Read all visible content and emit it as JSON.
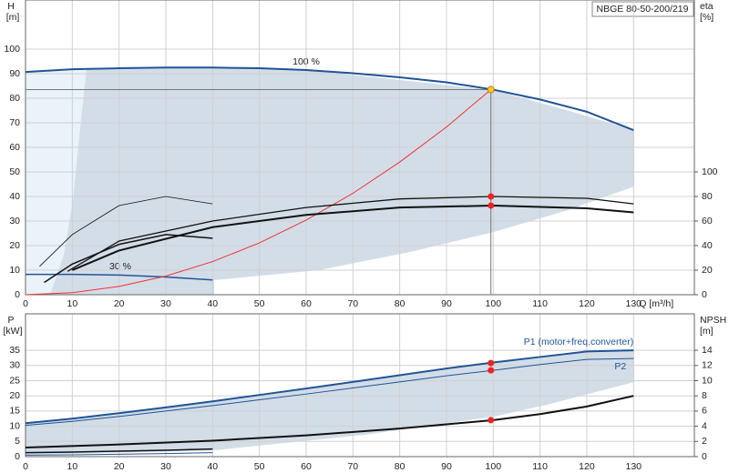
{
  "title": "NBGE 80-50-200/219",
  "chart_data": [
    {
      "type": "line",
      "xlabel": "Q [m³/h]",
      "ylabel": "H",
      "yunit": "[m]",
      "y2label": "eta",
      "y2unit": "[%]",
      "xlim": [
        0,
        143
      ],
      "xticks": [
        0,
        10,
        20,
        30,
        40,
        50,
        60,
        70,
        80,
        90,
        100,
        110,
        120,
        130
      ],
      "ylim": [
        0,
        120
      ],
      "yticks": [
        0,
        10,
        20,
        30,
        40,
        50,
        60,
        70,
        80,
        90,
        100
      ],
      "y2lim": [
        0,
        240
      ],
      "y2ticks": [
        0,
        20,
        40,
        60,
        80,
        100
      ],
      "grid": true,
      "annotations": [
        "100 %",
        "30 %"
      ],
      "series": [
        {
          "color": "#1f5496",
          "width": 2,
          "x": [
            0,
            10,
            20,
            30,
            40,
            50,
            60,
            70,
            80,
            90,
            100,
            110,
            120,
            130
          ],
          "values": [
            90.7,
            91.8,
            92.2,
            92.5,
            92.5,
            92.2,
            91.5,
            90.2,
            88.5,
            86.5,
            83.5,
            79.5,
            74.5,
            67
          ]
        },
        {
          "color": "#1f5496",
          "width": 1.5,
          "x": [
            0,
            10,
            20,
            30,
            40
          ],
          "values": [
            8.3,
            8.3,
            8,
            7.2,
            6
          ]
        },
        {
          "color": "#ee3333",
          "width": 1,
          "x": [
            0,
            10,
            20,
            30,
            40,
            50,
            60,
            70,
            80,
            90,
            99.5
          ],
          "values": [
            0,
            0.84,
            3.37,
            7.59,
            13.5,
            21.1,
            30.4,
            41.3,
            54,
            68.3,
            83.5
          ]
        },
        {
          "color": "#111111",
          "width": 1.3,
          "axis": "y2",
          "x": [
            9,
            20,
            40,
            60,
            80,
            100,
            120,
            130
          ],
          "values": [
            19,
            43.7,
            60,
            71,
            78,
            80,
            78.5,
            74
          ]
        },
        {
          "color": "#111111",
          "width": 2,
          "axis": "y2",
          "x": [
            10,
            20,
            40,
            60,
            80,
            100,
            120,
            130
          ],
          "values": [
            20,
            36,
            55,
            65,
            71,
            72.6,
            70.4,
            67
          ]
        },
        {
          "color": "#111111",
          "width": 0.8,
          "axis": "y2",
          "x": [
            3,
            10,
            20,
            30,
            40
          ],
          "values": [
            23,
            49,
            72.6,
            80,
            74
          ]
        },
        {
          "color": "#111111",
          "width": 1.5,
          "axis": "y2",
          "x": [
            4,
            10,
            20,
            30,
            40
          ],
          "values": [
            10,
            25,
            41,
            49,
            46
          ]
        }
      ],
      "points": [
        {
          "x": 99.5,
          "y": 83.5,
          "color": "#ffcc22",
          "guides": true
        },
        {
          "x": 99.5,
          "y": 80,
          "color": "#ee2222",
          "axis": "y2"
        },
        {
          "x": 99.5,
          "y": 72.6,
          "color": "#ee2222",
          "axis": "y2"
        }
      ]
    },
    {
      "type": "line",
      "ylabel": "P",
      "yunit": "[kW]",
      "y2label": "NPSH",
      "y2unit": "[m]",
      "xlim": [
        0,
        143
      ],
      "xticks": [
        0,
        10,
        20,
        30,
        40,
        50,
        60,
        70,
        80,
        90,
        100,
        110,
        120,
        130
      ],
      "ylim": [
        0,
        47
      ],
      "yticks": [
        0,
        5,
        10,
        15,
        20,
        25,
        30,
        35
      ],
      "y2lim": [
        0,
        18.8
      ],
      "y2ticks": [
        0,
        2,
        4,
        6,
        8,
        10,
        12,
        14
      ],
      "grid": true,
      "series": [
        {
          "name": "P1 (motor+freq.converter)",
          "color": "#1f5496",
          "width": 2,
          "x": [
            0,
            10,
            20,
            30,
            40,
            50,
            60,
            70,
            80,
            90,
            100,
            110,
            120,
            130
          ],
          "values": [
            11,
            12.5,
            14.3,
            16.2,
            18.2,
            20.3,
            22.4,
            24.6,
            26.8,
            29,
            31,
            32.8,
            34.6,
            35
          ]
        },
        {
          "name": "P2",
          "color": "#1f5496",
          "width": 1,
          "x": [
            0,
            10,
            20,
            30,
            40,
            50,
            60,
            70,
            80,
            90,
            100,
            110,
            120,
            130
          ],
          "values": [
            10.3,
            11.6,
            13.2,
            15,
            16.8,
            18.7,
            20.6,
            22.6,
            24.6,
            26.6,
            28.4,
            30.3,
            32,
            32.3
          ]
        },
        {
          "color": "#111111",
          "width": 2,
          "axis": "y2",
          "x": [
            0,
            20,
            40,
            60,
            80,
            100,
            110,
            120,
            130
          ],
          "values": [
            1.2,
            1.6,
            2.1,
            2.8,
            3.7,
            4.8,
            5.6,
            6.6,
            8
          ]
        },
        {
          "color": "#111111",
          "width": 1.5,
          "x": [
            0,
            10,
            20,
            30,
            40
          ],
          "values": [
            1.3,
            1.5,
            1.8,
            2.1,
            2.5
          ]
        },
        {
          "color": "#1f5496",
          "width": 1,
          "x": [
            0,
            10,
            20,
            30,
            40
          ],
          "values": [
            0.5,
            0.6,
            0.8,
            1,
            1.3
          ]
        }
      ],
      "points": [
        {
          "x": 99.5,
          "y": 30.8,
          "color": "#ee2222"
        },
        {
          "x": 99.5,
          "y": 28.4,
          "color": "#ee2222"
        },
        {
          "x": 99.5,
          "y": 4.8,
          "color": "#ee2222",
          "axis": "y2"
        }
      ]
    }
  ]
}
